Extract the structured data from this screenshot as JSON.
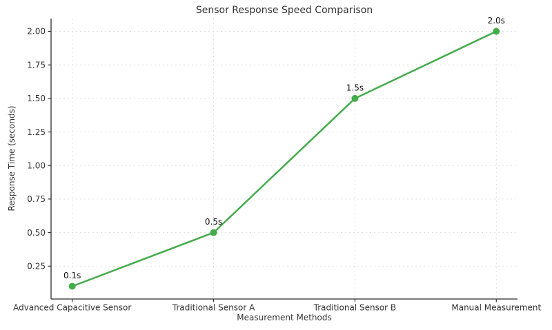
{
  "chart_data": {
    "type": "line",
    "title": "Sensor Response Speed Comparison",
    "xlabel": "Measurement Methods",
    "ylabel": "Response Time (seconds)",
    "categories": [
      "Advanced Capacitive Sensor",
      "Traditional Sensor A",
      "Traditional Sensor B",
      "Manual Measurement"
    ],
    "series": [
      {
        "name": "Response Time",
        "values": [
          0.1,
          0.5,
          1.5,
          2.0
        ],
        "point_labels": [
          "0.1s",
          "0.5s",
          "1.5s",
          "2.0s"
        ],
        "color": "#44ab4c"
      }
    ],
    "yticks": [
      0.25,
      0.5,
      0.75,
      1.0,
      1.25,
      1.5,
      1.75,
      2.0
    ],
    "ytick_labels": [
      "0.25",
      "0.50",
      "0.75",
      "1.00",
      "1.25",
      "1.50",
      "1.75",
      "2.00"
    ],
    "ylim": [
      0.005,
      2.095
    ],
    "xlim": [
      -0.15,
      3.15
    ],
    "grid": true,
    "legend_position": "none",
    "background_color": "#ffffff",
    "spine_color": "#2b2b2b",
    "grid_color": "#dedede"
  }
}
